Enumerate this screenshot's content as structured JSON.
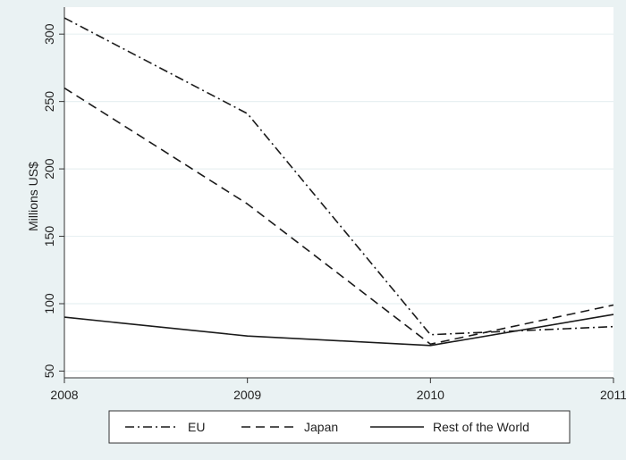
{
  "chart_data": {
    "type": "line",
    "title": "",
    "xlabel": "",
    "ylabel": "Millions US$",
    "x": [
      2008,
      2009,
      2010,
      2011
    ],
    "x_tick_labels": [
      "2008",
      "2009",
      "2010",
      "2011"
    ],
    "xlim": [
      2008,
      2011
    ],
    "y_ticks": [
      50,
      100,
      150,
      200,
      250,
      300
    ],
    "ylim": [
      45,
      320
    ],
    "grid": true,
    "legend_position": "bottom",
    "series": [
      {
        "name": "EU",
        "values": [
          312,
          241,
          77,
          83
        ],
        "dash": "dash-dot"
      },
      {
        "name": "Japan",
        "values": [
          260,
          174,
          70,
          99
        ],
        "dash": "dash"
      },
      {
        "name": "Rest of the World",
        "values": [
          90,
          76,
          69,
          92
        ],
        "dash": "solid"
      }
    ],
    "colors": {
      "outer_background": "#eaf2f3",
      "plot_background": "#ffffff",
      "grid": "#e8f0f2",
      "line": "#1a1a1a"
    }
  }
}
